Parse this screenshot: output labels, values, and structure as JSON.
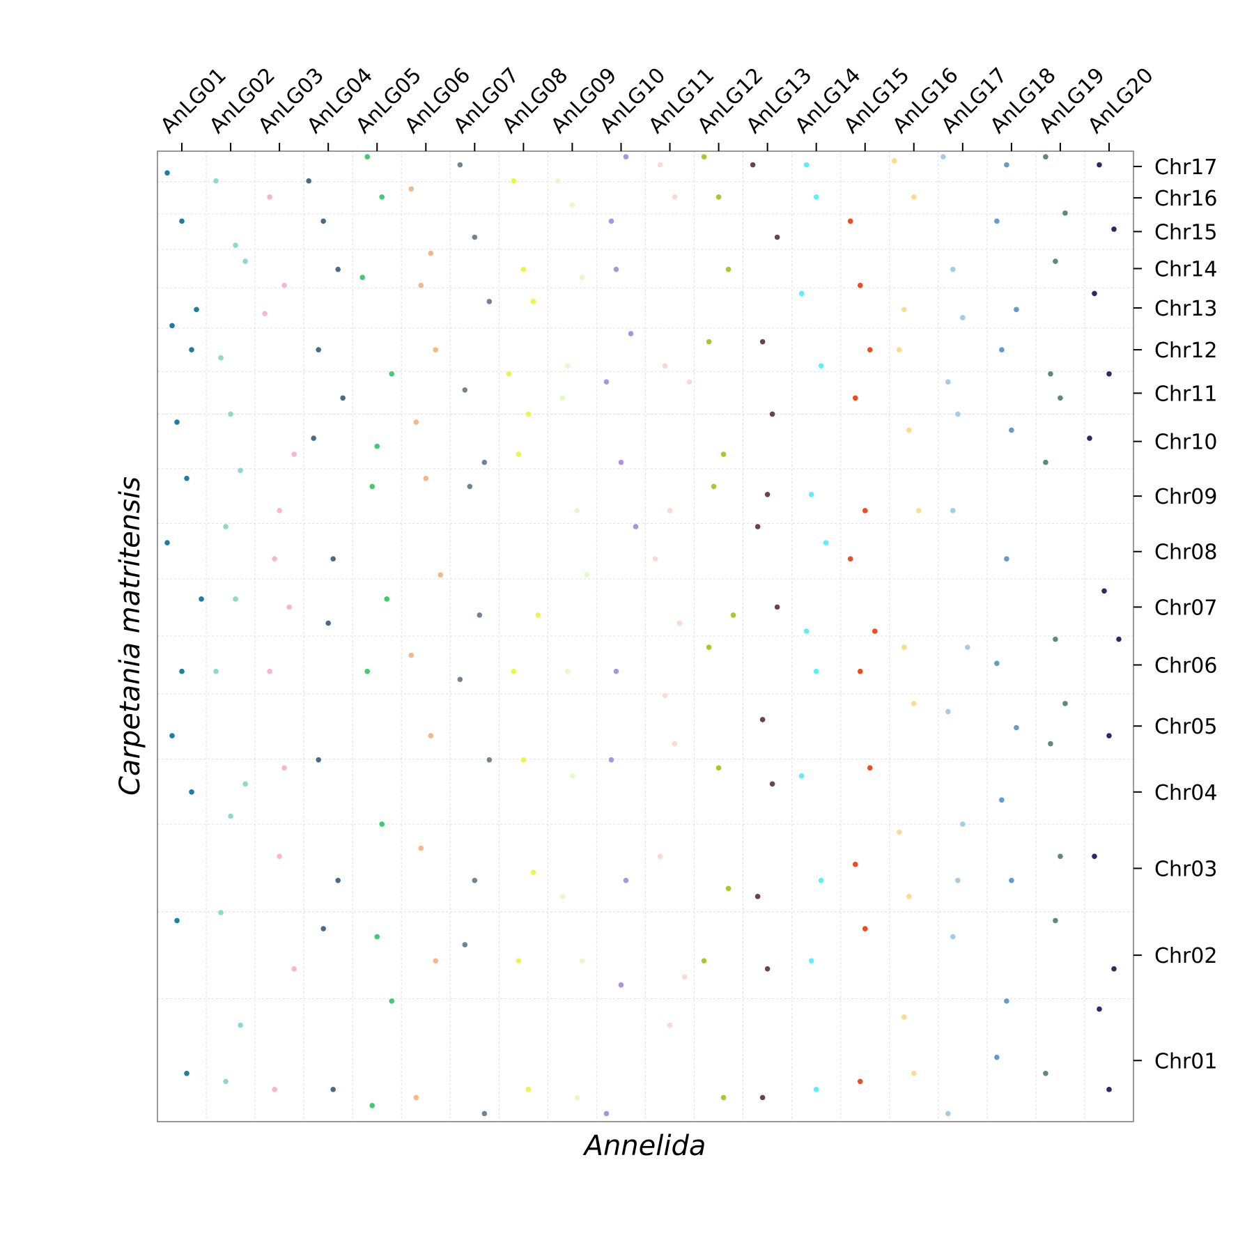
{
  "chart_data": {
    "type": "scatter",
    "xlabel": "Annelida",
    "ylabel": "Carpetania matritensis",
    "xaxis_side": "top",
    "yaxis_side": "right",
    "grid": true,
    "xlim": [
      0,
      20
    ],
    "ylim": [
      0,
      1207
    ],
    "xticks": [
      {
        "value": 0.5,
        "label": "AnLG01"
      },
      {
        "value": 1.5,
        "label": "AnLG02"
      },
      {
        "value": 2.5,
        "label": "AnLG03"
      },
      {
        "value": 3.5,
        "label": "AnLG04"
      },
      {
        "value": 4.5,
        "label": "AnLG05"
      },
      {
        "value": 5.5,
        "label": "AnLG06"
      },
      {
        "value": 6.5,
        "label": "AnLG07"
      },
      {
        "value": 7.5,
        "label": "AnLG08"
      },
      {
        "value": 8.5,
        "label": "AnLG09"
      },
      {
        "value": 9.5,
        "label": "AnLG10"
      },
      {
        "value": 10.5,
        "label": "AnLG11"
      },
      {
        "value": 11.5,
        "label": "AnLG12"
      },
      {
        "value": 12.5,
        "label": "AnLG13"
      },
      {
        "value": 13.5,
        "label": "AnLG14"
      },
      {
        "value": 14.5,
        "label": "AnLG15"
      },
      {
        "value": 15.5,
        "label": "AnLG16"
      },
      {
        "value": 16.5,
        "label": "AnLG17"
      },
      {
        "value": 17.5,
        "label": "AnLG18"
      },
      {
        "value": 18.5,
        "label": "AnLG19"
      },
      {
        "value": 19.5,
        "label": "AnLG20"
      }
    ],
    "yticks": [
      {
        "value": 76,
        "label": "Chr01"
      },
      {
        "value": 207,
        "label": "Chr02"
      },
      {
        "value": 315,
        "label": "Chr03"
      },
      {
        "value": 410,
        "label": "Chr04"
      },
      {
        "value": 492,
        "label": "Chr05"
      },
      {
        "value": 568,
        "label": "Chr06"
      },
      {
        "value": 640,
        "label": "Chr07"
      },
      {
        "value": 709,
        "label": "Chr08"
      },
      {
        "value": 778,
        "label": "Chr09"
      },
      {
        "value": 846,
        "label": "Chr10"
      },
      {
        "value": 906,
        "label": "Chr11"
      },
      {
        "value": 960,
        "label": "Chr12"
      },
      {
        "value": 1012,
        "label": "Chr13"
      },
      {
        "value": 1061,
        "label": "Chr14"
      },
      {
        "value": 1107,
        "label": "Chr15"
      },
      {
        "value": 1149,
        "label": "Chr16"
      },
      {
        "value": 1188,
        "label": "Chr17"
      }
    ],
    "xgrid": [
      1,
      2,
      3,
      4,
      5,
      6,
      7,
      8,
      9,
      10,
      11,
      12,
      13,
      14,
      15,
      16,
      17,
      18,
      19
    ],
    "ygrid": [
      153,
      261,
      370,
      451,
      532,
      604,
      675,
      744,
      812,
      880,
      933,
      987,
      1037,
      1085,
      1129,
      1169
    ],
    "series": [
      {
        "color": "#1a7fa3",
        "x": [
          0.2,
          0.5,
          0.8,
          0.3,
          0.7,
          0.4,
          0.6,
          0.2,
          0.9,
          0.5,
          0.3,
          0.7,
          0.4,
          0.6
        ],
        "values": [
          1180,
          1120,
          1010,
          990,
          960,
          870,
          800,
          720,
          650,
          560,
          480,
          410,
          250,
          60
        ]
      },
      {
        "color": "#8fd9cc",
        "x": [
          1.2,
          1.6,
          1.8,
          1.3,
          1.5,
          1.7,
          1.4,
          1.6,
          1.2,
          1.8,
          1.5,
          1.3,
          1.7,
          1.4
        ],
        "values": [
          1170,
          1090,
          1070,
          950,
          880,
          810,
          740,
          650,
          560,
          420,
          380,
          260,
          120,
          50
        ]
      },
      {
        "color": "#f7b5d0",
        "x": [
          2.3,
          2.6,
          2.2,
          2.8,
          2.5,
          2.4,
          2.7,
          2.3,
          2.6,
          2.5,
          2.8,
          2.4
        ],
        "values": [
          1150,
          1040,
          1005,
          830,
          760,
          700,
          640,
          560,
          440,
          330,
          190,
          40
        ]
      },
      {
        "color": "#4a6b85",
        "x": [
          3.1,
          3.4,
          3.7,
          3.3,
          3.8,
          3.2,
          3.6,
          3.5,
          3.3,
          3.7,
          3.4,
          3.6
        ],
        "values": [
          1170,
          1120,
          1060,
          960,
          900,
          850,
          700,
          620,
          450,
          300,
          240,
          40
        ]
      },
      {
        "color": "#3dcc6e",
        "x": [
          4.3,
          4.6,
          4.2,
          4.8,
          4.5,
          4.4,
          4.7,
          4.3,
          4.6,
          4.5,
          4.8,
          4.4
        ],
        "values": [
          1200,
          1150,
          1050,
          930,
          840,
          790,
          650,
          560,
          370,
          230,
          150,
          20
        ]
      },
      {
        "color": "#f5b787",
        "x": [
          5.2,
          5.6,
          5.4,
          5.7,
          5.3,
          5.5,
          5.8,
          5.2,
          5.6,
          5.4,
          5.7,
          5.3
        ],
        "values": [
          1160,
          1080,
          1040,
          960,
          870,
          800,
          680,
          580,
          480,
          340,
          200,
          30
        ]
      },
      {
        "color": "#6e8594",
        "x": [
          6.2,
          6.5,
          6.8,
          6.3,
          6.7,
          6.4,
          6.6,
          6.2,
          6.8,
          6.5,
          6.3,
          6.7
        ],
        "values": [
          1190,
          1100,
          1020,
          910,
          820,
          790,
          630,
          550,
          450,
          300,
          220,
          10
        ]
      },
      {
        "color": "#eaf74a",
        "x": [
          7.3,
          7.5,
          7.7,
          7.2,
          7.6,
          7.4,
          7.8,
          7.3,
          7.5,
          7.7,
          7.4,
          7.6
        ],
        "values": [
          1170,
          1060,
          1020,
          930,
          880,
          830,
          630,
          560,
          450,
          310,
          200,
          40
        ]
      },
      {
        "color": "#e2fcc8",
        "x": [
          8.2,
          8.5,
          8.7,
          8.4,
          8.3,
          8.6,
          8.8,
          8.4,
          8.5,
          8.3,
          8.7,
          8.6
        ],
        "values": [
          1170,
          1140,
          1050,
          940,
          900,
          760,
          680,
          560,
          430,
          280,
          200,
          30
        ]
      },
      {
        "color": "#a895db",
        "x": [
          9.6,
          9.3,
          9.4,
          9.7,
          9.2,
          9.5,
          9.8,
          9.4,
          9.3,
          9.6,
          9.5,
          9.2
        ],
        "values": [
          1200,
          1120,
          1060,
          980,
          920,
          820,
          740,
          560,
          450,
          300,
          170,
          10
        ]
      },
      {
        "color": "#fcd9cf",
        "x": [
          10.3,
          10.6,
          10.4,
          10.9,
          10.5,
          10.2,
          10.7,
          10.4,
          10.6,
          10.3,
          10.8,
          10.5
        ],
        "values": [
          1190,
          1150,
          940,
          920,
          760,
          700,
          620,
          530,
          470,
          330,
          180,
          120
        ]
      },
      {
        "color": "#a1cc29",
        "x": [
          11.2,
          11.5,
          11.7,
          11.3,
          11.6,
          11.4,
          11.8,
          11.3,
          11.5,
          11.7,
          11.2,
          11.6
        ],
        "values": [
          1200,
          1150,
          1060,
          970,
          830,
          790,
          630,
          590,
          440,
          290,
          200,
          30
        ]
      },
      {
        "color": "#6b4252",
        "x": [
          12.2,
          12.7,
          12.4,
          12.6,
          12.5,
          12.3,
          12.7,
          12.4,
          12.6,
          12.3,
          12.5,
          12.4
        ],
        "values": [
          1190,
          1100,
          970,
          880,
          780,
          740,
          640,
          500,
          420,
          280,
          190,
          30
        ]
      },
      {
        "color": "#5ceeff",
        "x": [
          13.3,
          13.5,
          13.2,
          13.6,
          13.4,
          13.7,
          13.3,
          13.5,
          13.2,
          13.6,
          13.4,
          13.5
        ],
        "values": [
          1190,
          1150,
          1030,
          940,
          780,
          720,
          610,
          560,
          430,
          300,
          200,
          40
        ]
      },
      {
        "color": "#f24a1a",
        "x": [
          14.2,
          14.4,
          14.6,
          14.3,
          14.5,
          14.2,
          14.7,
          14.4,
          14.6,
          14.3,
          14.5,
          14.4
        ],
        "values": [
          1120,
          1040,
          960,
          900,
          760,
          700,
          610,
          560,
          440,
          320,
          240,
          50
        ]
      },
      {
        "color": "#fadc8c",
        "x": [
          15.1,
          15.5,
          15.3,
          15.2,
          15.4,
          15.6,
          15.3,
          15.5,
          15.2,
          15.4,
          15.3,
          15.5
        ],
        "values": [
          1195,
          1150,
          1010,
          960,
          860,
          760,
          590,
          520,
          360,
          280,
          130,
          60
        ]
      },
      {
        "color": "#a3cce6",
        "x": [
          16.1,
          16.3,
          16.5,
          16.2,
          16.4,
          16.3,
          16.6,
          16.2,
          16.5,
          16.4,
          16.3,
          16.2
        ],
        "values": [
          1200,
          1060,
          1000,
          920,
          880,
          760,
          590,
          510,
          370,
          300,
          230,
          10
        ]
      },
      {
        "color": "#6699cc",
        "x": [
          17.4,
          17.2,
          17.6,
          17.3,
          17.5,
          17.4,
          17.2,
          17.6,
          17.3,
          17.5,
          17.4,
          17.2
        ],
        "values": [
          1190,
          1120,
          1010,
          960,
          860,
          700,
          570,
          490,
          400,
          300,
          150,
          80
        ]
      },
      {
        "color": "#5c8a7a",
        "x": [
          18.2,
          18.6,
          18.4,
          18.3,
          18.5,
          18.2,
          18.4,
          18.6,
          18.3,
          18.5,
          18.4,
          18.2
        ],
        "values": [
          1200,
          1130,
          1070,
          930,
          900,
          820,
          600,
          520,
          470,
          330,
          250,
          60
        ]
      },
      {
        "color": "#2e2966",
        "x": [
          19.3,
          19.6,
          19.2,
          19.5,
          19.1,
          19.4,
          19.7,
          19.5,
          19.2,
          19.6,
          19.3,
          19.5
        ],
        "values": [
          1190,
          1110,
          1030,
          930,
          850,
          660,
          600,
          480,
          330,
          190,
          140,
          40
        ]
      }
    ]
  }
}
